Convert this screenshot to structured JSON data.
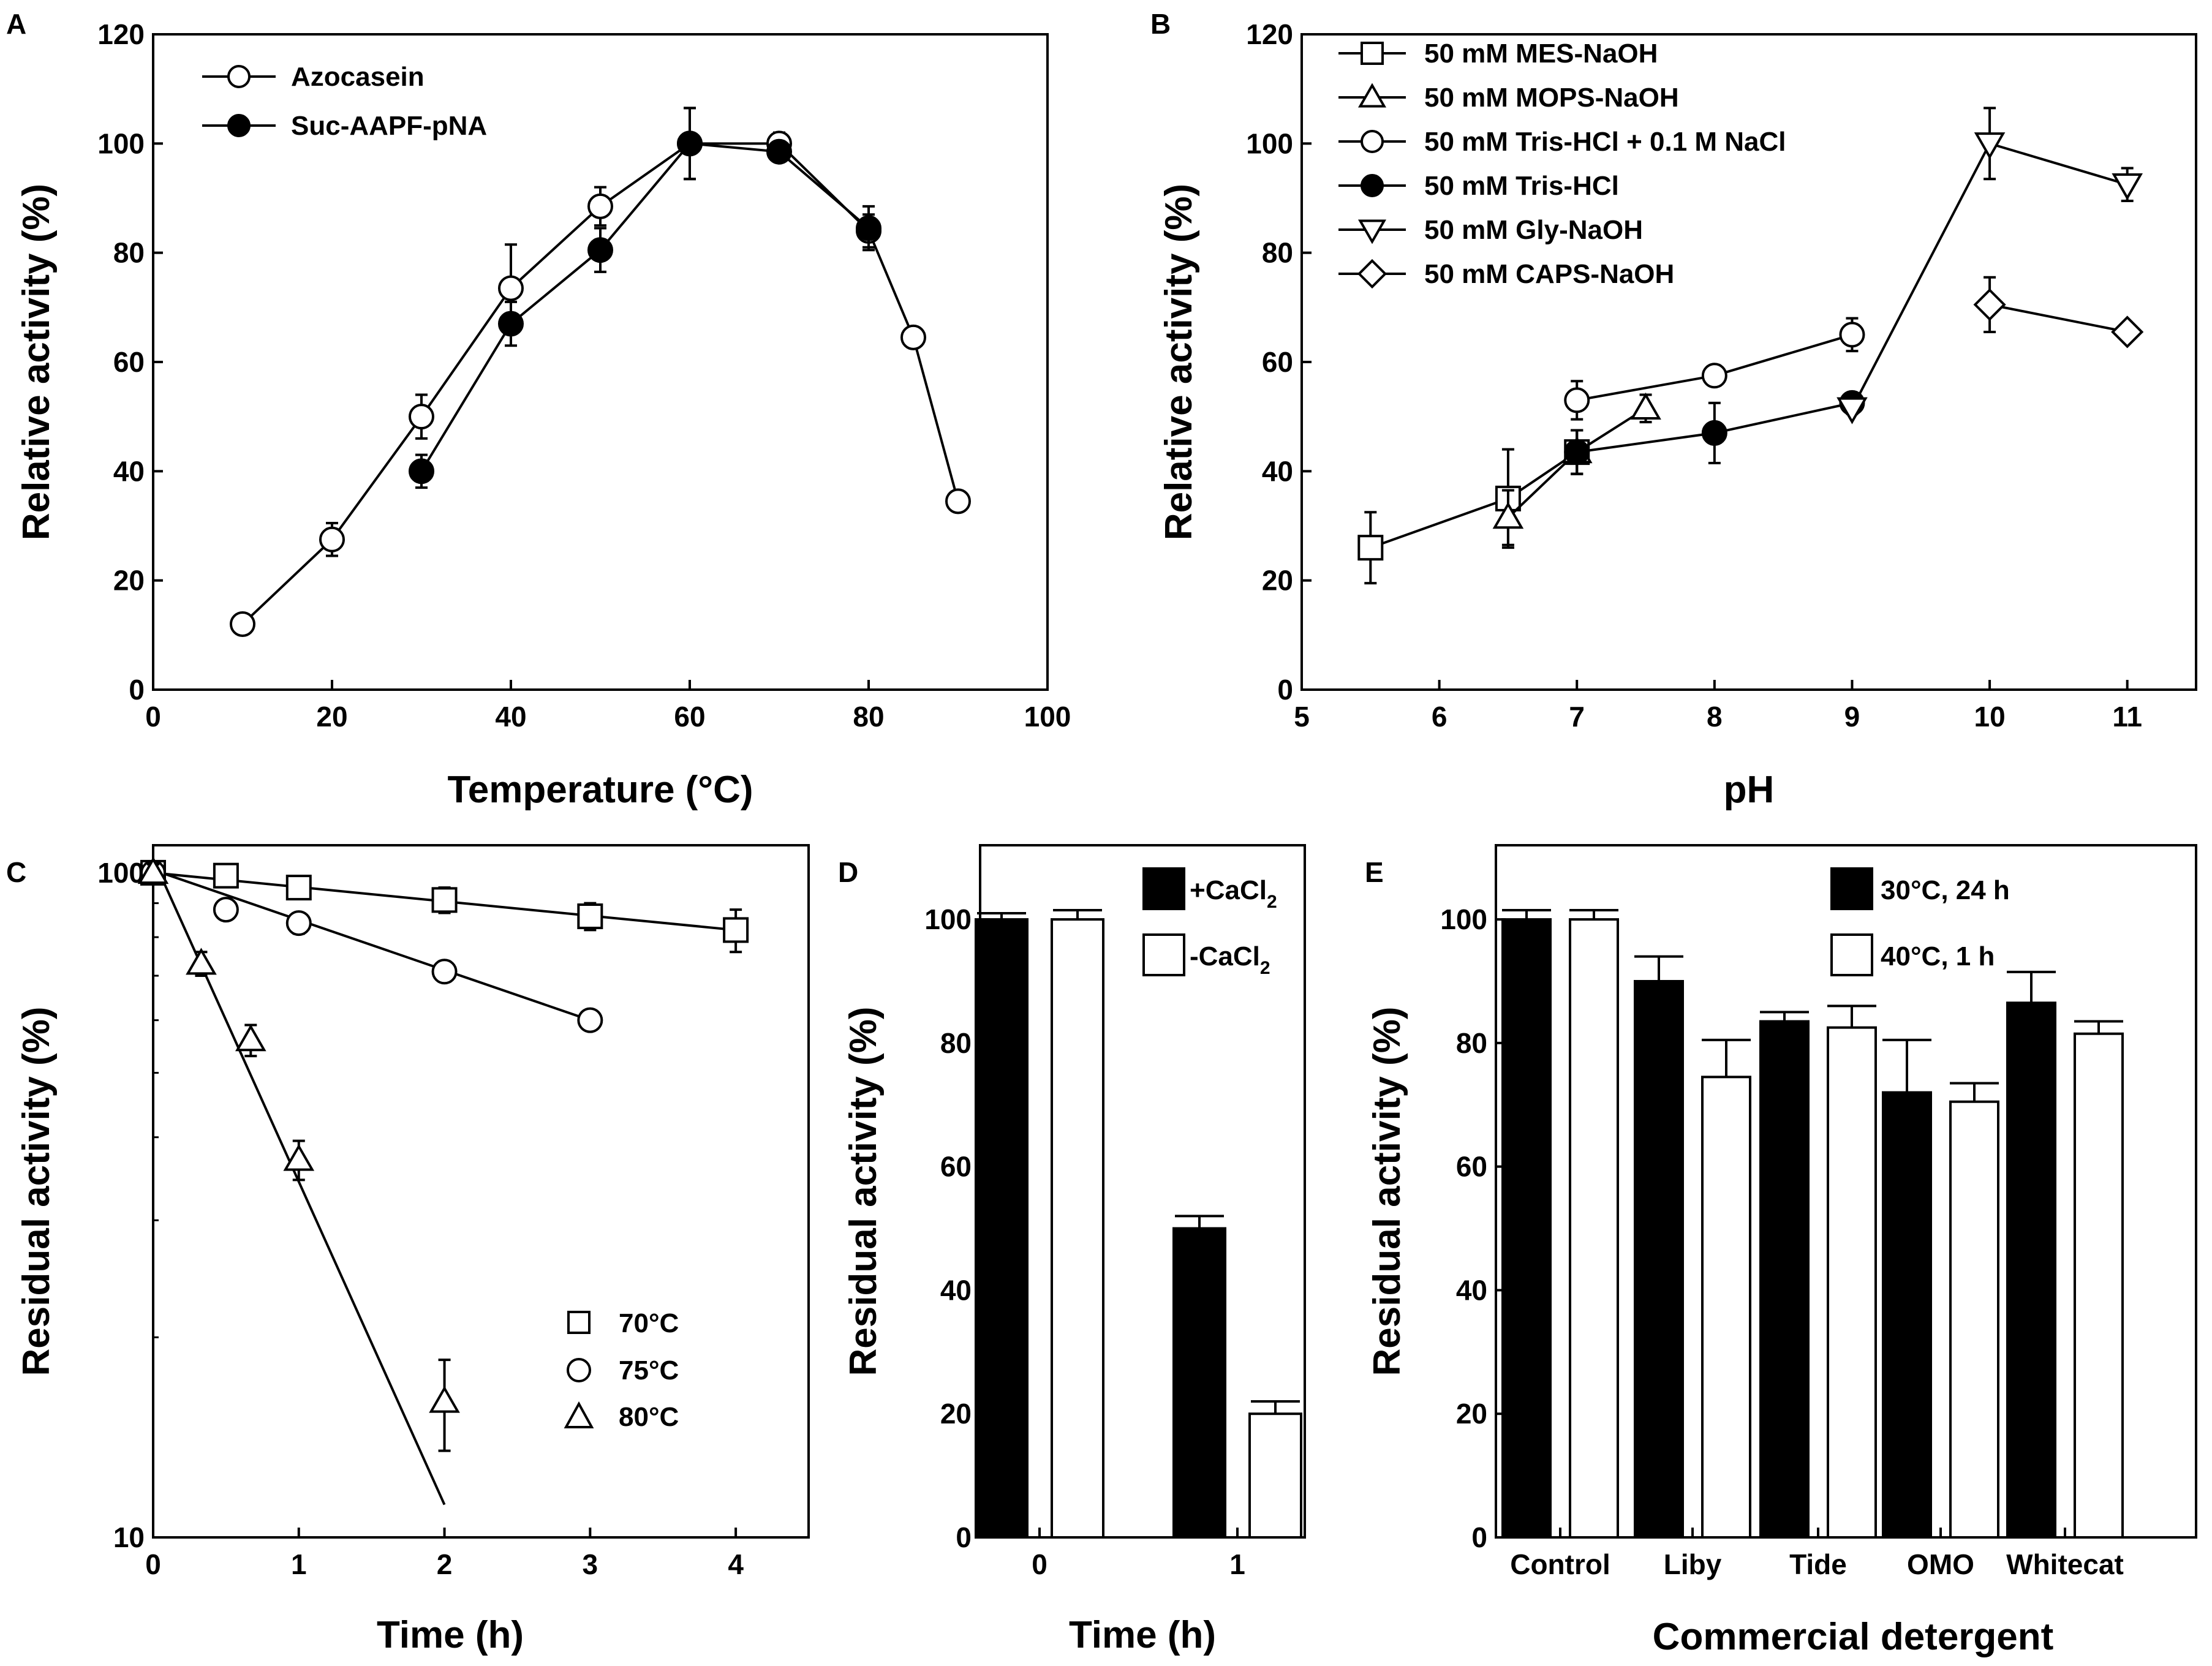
{
  "chart_data": [
    {
      "panel": "A",
      "type": "line",
      "xlabel": "Temperature (°C)",
      "ylabel": "Relative activity (%)",
      "xlim": [
        0,
        100
      ],
      "ylim": [
        0,
        120
      ],
      "xticks": [
        0,
        20,
        40,
        60,
        80,
        100
      ],
      "yticks": [
        0,
        20,
        40,
        60,
        80,
        100,
        120
      ],
      "legend_position": "top-left",
      "series": [
        {
          "name": "Azocasein",
          "marker": "circle-open",
          "x": [
            10,
            20,
            30,
            40,
            50,
            60,
            70,
            80,
            85,
            90
          ],
          "y": [
            12,
            27.5,
            50,
            73.5,
            88.5,
            100,
            100,
            84,
            64.5,
            34.5
          ],
          "err": [
            1.5,
            3,
            4,
            8,
            3.5,
            6.5,
            2,
            3,
            1.5,
            1.5
          ]
        },
        {
          "name": "Suc-AAPF-pNA",
          "marker": "circle-filled",
          "x": [
            30,
            40,
            50,
            60,
            70,
            80
          ],
          "y": [
            40,
            67,
            80.5,
            100,
            98.5,
            84.5
          ],
          "err": [
            3,
            4,
            4,
            6.5,
            1.5,
            4
          ]
        }
      ]
    },
    {
      "panel": "B",
      "type": "line",
      "xlabel": "pH",
      "ylabel": "Relative activity (%)",
      "xlim": [
        5,
        11.5
      ],
      "ylim": [
        0,
        120
      ],
      "xticks": [
        5,
        6,
        7,
        8,
        9,
        10,
        11
      ],
      "yticks": [
        0,
        20,
        40,
        60,
        80,
        100,
        120
      ],
      "legend_position": "top-left",
      "series": [
        {
          "name": "50 mM MES-NaOH",
          "marker": "square",
          "x": [
            5.5,
            6.5,
            7.0
          ],
          "y": [
            26,
            35,
            43.5
          ],
          "err": [
            6.5,
            9,
            4
          ]
        },
        {
          "name": "50 mM MOPS-NaOH",
          "marker": "triangle-up",
          "x": [
            6.5,
            7.0,
            7.5
          ],
          "y": [
            31.5,
            43.5,
            51.5
          ],
          "err": [
            5,
            4,
            2.5
          ]
        },
        {
          "name": "50 mM Tris-HCl + 0.1 M NaCl",
          "marker": "circle-open",
          "x": [
            7.0,
            8.0,
            9.0
          ],
          "y": [
            53,
            57.5,
            65
          ],
          "err": [
            3.5,
            1.5,
            3
          ]
        },
        {
          "name": "50 mM Tris-HCl",
          "marker": "circle-filled",
          "x": [
            7.0,
            8.0,
            9.0
          ],
          "y": [
            43.5,
            47,
            52.5
          ],
          "err": [
            4,
            5.5,
            1
          ]
        },
        {
          "name": "50 mM Gly-NaOH",
          "marker": "triangle-down",
          "x": [
            9.0,
            10.0,
            11.0
          ],
          "y": [
            51.5,
            100,
            92.5
          ],
          "err": [
            1,
            6.5,
            3
          ]
        },
        {
          "name": "50 mM CAPS-NaOH",
          "marker": "diamond",
          "x": [
            10.0,
            11.0
          ],
          "y": [
            70.5,
            65.5
          ],
          "err": [
            5,
            1
          ]
        }
      ]
    },
    {
      "panel": "C",
      "type": "scatter",
      "xlabel": "Time (h)",
      "ylabel": "Residual activity (%)",
      "yscale": "log",
      "xlim": [
        0,
        4.5
      ],
      "ylim": [
        10,
        110
      ],
      "xticks": [
        0,
        1,
        2,
        3,
        4
      ],
      "yticks": [
        10,
        100
      ],
      "legend_position": "bottom-right",
      "series": [
        {
          "name": "70°C",
          "marker": "square",
          "x": [
            0,
            0.5,
            1,
            2,
            3,
            4
          ],
          "y": [
            100,
            99,
            95,
            91,
            86,
            82
          ],
          "err": [
            3,
            3,
            3,
            4,
            4,
            6
          ],
          "fit": [
            [
              0,
              100
            ],
            [
              4,
              82
            ]
          ]
        },
        {
          "name": "75°C",
          "marker": "circle-open",
          "x": [
            0,
            0.5,
            1,
            2,
            3
          ],
          "y": [
            100,
            88,
            84,
            71,
            60
          ],
          "err": [
            3,
            3,
            3,
            2,
            2
          ],
          "fit": [
            [
              0,
              101
            ],
            [
              3,
              60
            ]
          ]
        },
        {
          "name": "80°C",
          "marker": "triangle-up",
          "x": [
            0,
            0.33,
            0.67,
            1,
            2
          ],
          "y": [
            100,
            73,
            56,
            37,
            16
          ],
          "err": [
            3,
            3,
            3,
            2.5,
            2.5
          ],
          "fit": [
            [
              0,
              105
            ],
            [
              2,
              11.2
            ]
          ]
        }
      ]
    },
    {
      "panel": "D",
      "type": "bar",
      "xlabel": "Time (h)",
      "ylabel": "Residual activity (%)",
      "categories": [
        "0",
        "1"
      ],
      "ylim": [
        0,
        112
      ],
      "yticks": [
        0,
        20,
        40,
        60,
        80,
        100
      ],
      "legend_position": "top-right",
      "series": [
        {
          "name": "+CaCl2",
          "label_main": "+CaCl",
          "label_sub": "2",
          "fill": "black",
          "values": [
            100,
            50
          ],
          "err": [
            1,
            2
          ]
        },
        {
          "name": "-CaCl2",
          "label_main": "-CaCl",
          "label_sub": "2",
          "fill": "white",
          "values": [
            100,
            20
          ],
          "err": [
            1.5,
            2
          ]
        }
      ]
    },
    {
      "panel": "E",
      "type": "bar",
      "xlabel": "Commercial detergent",
      "ylabel": "Residual activity (%)",
      "categories": [
        "Control",
        "Liby",
        "Tide",
        "OMO",
        "Whitecat"
      ],
      "ylim": [
        0,
        112
      ],
      "yticks": [
        0,
        20,
        40,
        60,
        80,
        100
      ],
      "legend_position": "top-center",
      "series": [
        {
          "name": "30°C, 24 h",
          "fill": "black",
          "values": [
            100,
            90,
            83.5,
            72,
            86.5
          ],
          "err": [
            1.5,
            4,
            1.5,
            8.5,
            5
          ]
        },
        {
          "name": "40°C, 1 h",
          "fill": "white",
          "values": [
            100,
            74.5,
            82.5,
            70.5,
            81.5
          ],
          "err": [
            1.5,
            6,
            3.5,
            3,
            2
          ]
        }
      ]
    }
  ],
  "style": {
    "axis_color": "#000000",
    "filled_color": "#000000",
    "open_color": "#ffffff"
  }
}
